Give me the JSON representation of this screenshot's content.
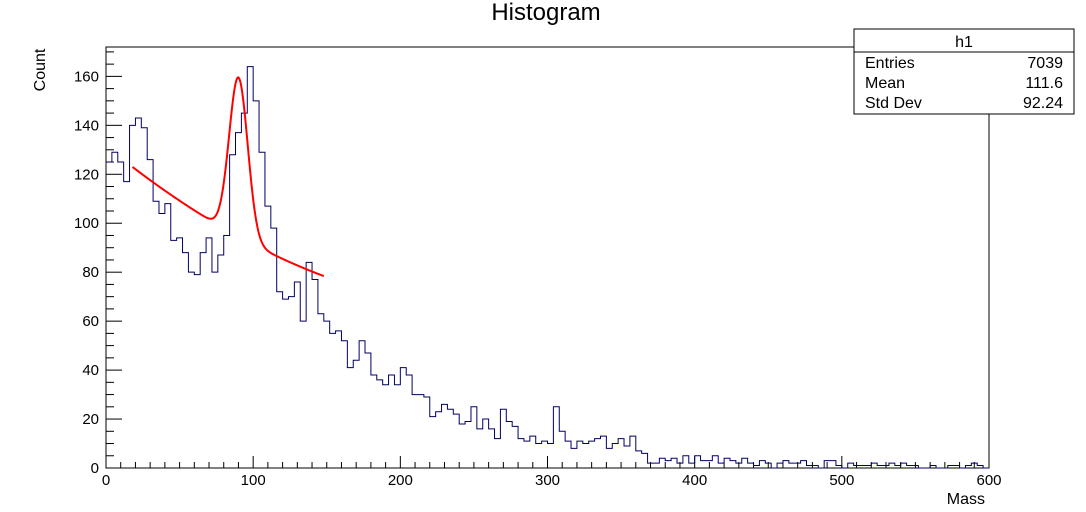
{
  "chart_data": {
    "type": "bar",
    "title": "Histogram",
    "xlabel": "Mass",
    "ylabel": "Count",
    "xlim": [
      0,
      600
    ],
    "ylim": [
      0,
      172
    ],
    "x_ticks": [
      0,
      100,
      200,
      300,
      400,
      500,
      600
    ],
    "y_ticks": [
      0,
      20,
      40,
      60,
      80,
      100,
      120,
      140,
      160
    ],
    "grid": false,
    "histogram": {
      "name": "h1",
      "bin_width": 4,
      "bin_start": 0,
      "values": [
        125,
        129,
        125,
        117,
        140,
        143,
        139,
        126,
        109,
        104,
        108,
        93,
        94,
        88,
        80,
        79,
        88,
        94,
        80,
        87,
        95,
        128,
        137,
        145,
        164,
        150,
        129,
        107,
        98,
        72,
        69,
        70,
        76,
        60,
        84,
        77,
        63,
        60,
        55,
        56,
        52,
        41,
        44,
        52,
        47,
        38,
        36,
        34,
        38,
        34,
        41,
        38,
        30,
        30,
        29,
        21,
        23,
        26,
        24,
        22,
        18,
        19,
        25,
        16,
        20,
        16,
        12,
        24,
        19,
        17,
        12,
        11,
        13,
        10,
        11,
        10,
        25,
        15,
        11,
        8,
        11,
        10,
        11,
        12,
        13,
        8,
        10,
        12,
        9,
        13,
        7,
        6,
        2,
        2,
        4,
        3,
        4,
        2,
        5,
        2,
        5,
        3,
        3,
        5,
        2,
        4,
        3,
        2,
        4,
        2,
        1,
        3,
        2,
        0,
        2,
        3,
        2,
        2,
        3,
        1,
        1,
        0,
        3,
        3,
        1,
        0,
        2,
        1,
        1,
        1,
        2,
        1,
        1,
        2,
        1,
        2,
        1,
        1,
        0,
        0,
        1,
        0,
        0,
        1,
        1,
        0,
        1,
        2,
        1,
        0
      ],
      "color": "#000066"
    },
    "fit": {
      "x_start": 18,
      "x_end": 148,
      "background": {
        "a": 74.4,
        "b": 0.01,
        "c": 2.4,
        "d": 0.03
      },
      "peak": {
        "mean": 90,
        "sigma": 6.3,
        "amplitude": 65
      },
      "color": "#ff0000"
    },
    "stats_box": {
      "title": "h1",
      "rows": [
        {
          "label": "Entries",
          "value": "7039"
        },
        {
          "label": "Mean",
          "value": "111.6"
        },
        {
          "label": "Std Dev",
          "value": "92.24"
        }
      ]
    }
  }
}
